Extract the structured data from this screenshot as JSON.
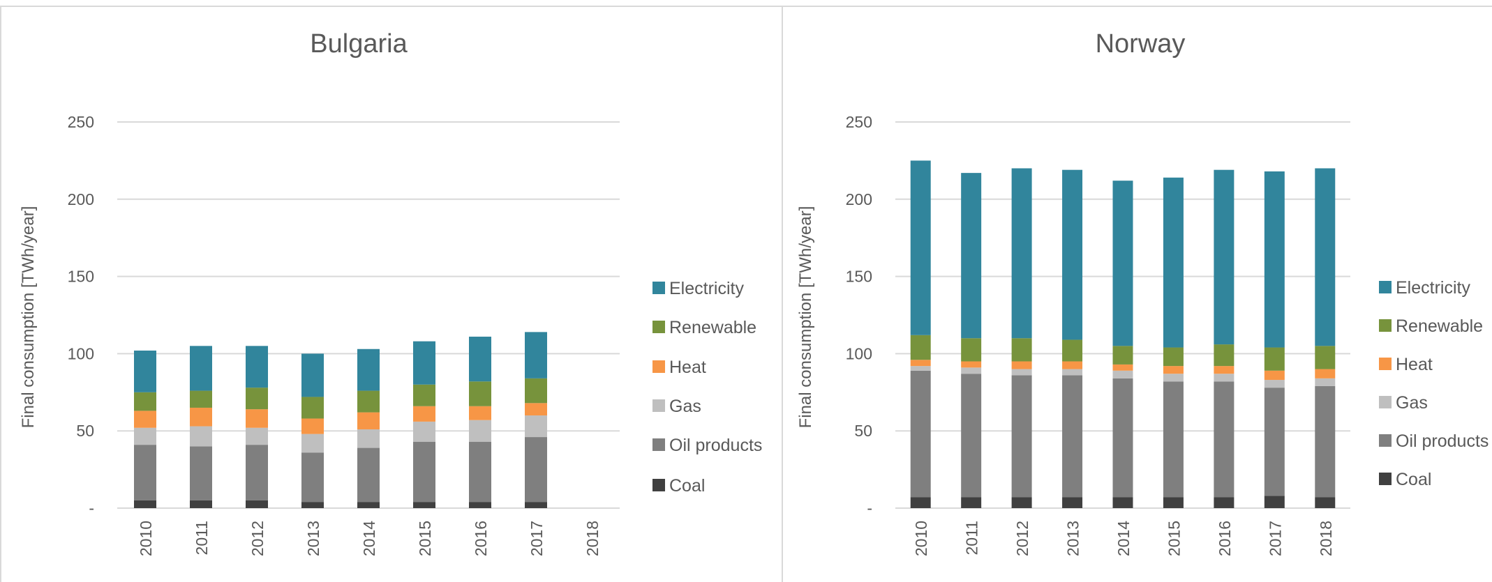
{
  "chart_data": [
    {
      "type": "bar",
      "stacked": true,
      "title": "Bulgaria",
      "ylabel": "Final consumption [TWh/year]",
      "xlabel": "",
      "ylim": [
        0,
        250
      ],
      "yticks": [
        0,
        50,
        100,
        150,
        200,
        250
      ],
      "ytick_labels": [
        "-",
        "50",
        "100",
        "150",
        "200",
        "250"
      ],
      "grid": true,
      "legend_position": "right",
      "categories": [
        "2010",
        "2011",
        "2012",
        "2013",
        "2014",
        "2015",
        "2016",
        "2017",
        "2018"
      ],
      "series": [
        {
          "name": "Coal",
          "color": "#404040",
          "values": [
            5,
            5,
            5,
            4,
            4,
            4,
            4,
            4,
            null
          ]
        },
        {
          "name": "Oil products",
          "color": "#7f7f7f",
          "values": [
            36,
            35,
            36,
            32,
            35,
            39,
            39,
            42,
            null
          ]
        },
        {
          "name": "Gas",
          "color": "#bfbfbf",
          "values": [
            11,
            13,
            11,
            12,
            12,
            13,
            14,
            14,
            null
          ]
        },
        {
          "name": "Heat",
          "color": "#f79646",
          "values": [
            11,
            12,
            12,
            10,
            11,
            10,
            9,
            8,
            null
          ]
        },
        {
          "name": "Renewable",
          "color": "#77933c",
          "values": [
            12,
            11,
            14,
            14,
            14,
            14,
            16,
            16,
            null
          ]
        },
        {
          "name": "Electricity",
          "color": "#31859c",
          "values": [
            27,
            29,
            27,
            28,
            27,
            28,
            29,
            30,
            null
          ]
        }
      ]
    },
    {
      "type": "bar",
      "stacked": true,
      "title": "Norway",
      "ylabel": "Final consumption [TWh/year]",
      "xlabel": "",
      "ylim": [
        0,
        250
      ],
      "yticks": [
        0,
        50,
        100,
        150,
        200,
        250
      ],
      "ytick_labels": [
        "-",
        "50",
        "100",
        "150",
        "200",
        "250"
      ],
      "grid": true,
      "legend_position": "right",
      "categories": [
        "2010",
        "2011",
        "2012",
        "2013",
        "2014",
        "2015",
        "2016",
        "2017",
        "2018"
      ],
      "series": [
        {
          "name": "Coal",
          "color": "#404040",
          "values": [
            7,
            7,
            7,
            7,
            7,
            7,
            7,
            8,
            7
          ]
        },
        {
          "name": "Oil products",
          "color": "#7f7f7f",
          "values": [
            82,
            80,
            79,
            79,
            77,
            75,
            75,
            70,
            72
          ]
        },
        {
          "name": "Gas",
          "color": "#bfbfbf",
          "values": [
            3,
            4,
            4,
            4,
            5,
            5,
            5,
            5,
            5
          ]
        },
        {
          "name": "Heat",
          "color": "#f79646",
          "values": [
            4,
            4,
            5,
            5,
            4,
            5,
            5,
            6,
            6
          ]
        },
        {
          "name": "Renewable",
          "color": "#77933c",
          "values": [
            16,
            15,
            15,
            14,
            12,
            12,
            14,
            15,
            15
          ]
        },
        {
          "name": "Electricity",
          "color": "#31859c",
          "values": [
            113,
            107,
            110,
            110,
            107,
            110,
            113,
            114,
            115
          ]
        }
      ]
    }
  ]
}
